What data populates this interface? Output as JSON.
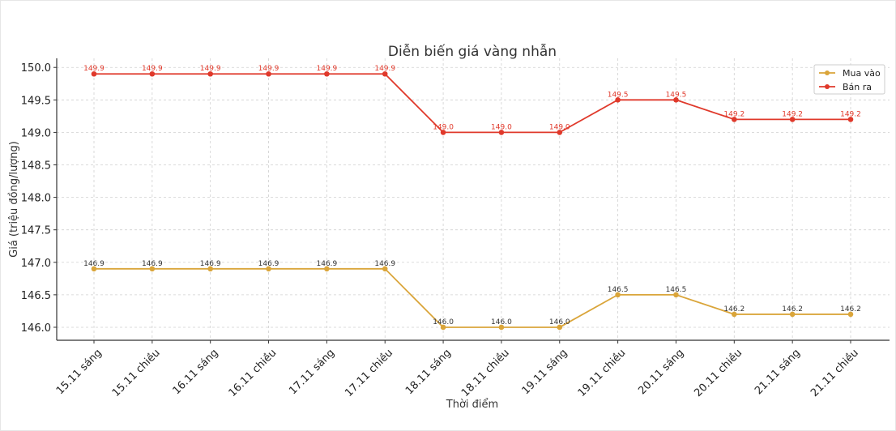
{
  "chart_data": {
    "type": "line",
    "title": "Diễn biến giá vàng nhẫn",
    "xlabel": "Thời điểm",
    "ylabel": "Giá (triệu đồng/lượng)",
    "categories": [
      "15.11 sáng",
      "15.11 chiều",
      "16.11 sáng",
      "16.11 chiều",
      "17.11 sáng",
      "17.11 chiều",
      "18.11 sáng",
      "18.11 chiều",
      "19.11 sáng",
      "19.11 chiều",
      "20.11 sáng",
      "20.11 chiều",
      "21.11 sáng",
      "21.11 chiều"
    ],
    "series": [
      {
        "name": "Mua vào",
        "color": "#DAA53A",
        "label_color": "#333333",
        "values": [
          146.9,
          146.9,
          146.9,
          146.9,
          146.9,
          146.9,
          146.0,
          146.0,
          146.0,
          146.5,
          146.5,
          146.2,
          146.2,
          146.2
        ]
      },
      {
        "name": "Bán ra",
        "color": "#E0392B",
        "label_color": "#E0392B",
        "values": [
          149.9,
          149.9,
          149.9,
          149.9,
          149.9,
          149.9,
          149.0,
          149.0,
          149.0,
          149.5,
          149.5,
          149.2,
          149.2,
          149.2
        ]
      }
    ],
    "yticks": [
      "146.0",
      "146.5",
      "147.0",
      "147.5",
      "148.0",
      "148.5",
      "149.0",
      "149.5",
      "150.0"
    ],
    "ylim": [
      145.8,
      150.14
    ],
    "grid": true,
    "legend_position": "top-right"
  }
}
